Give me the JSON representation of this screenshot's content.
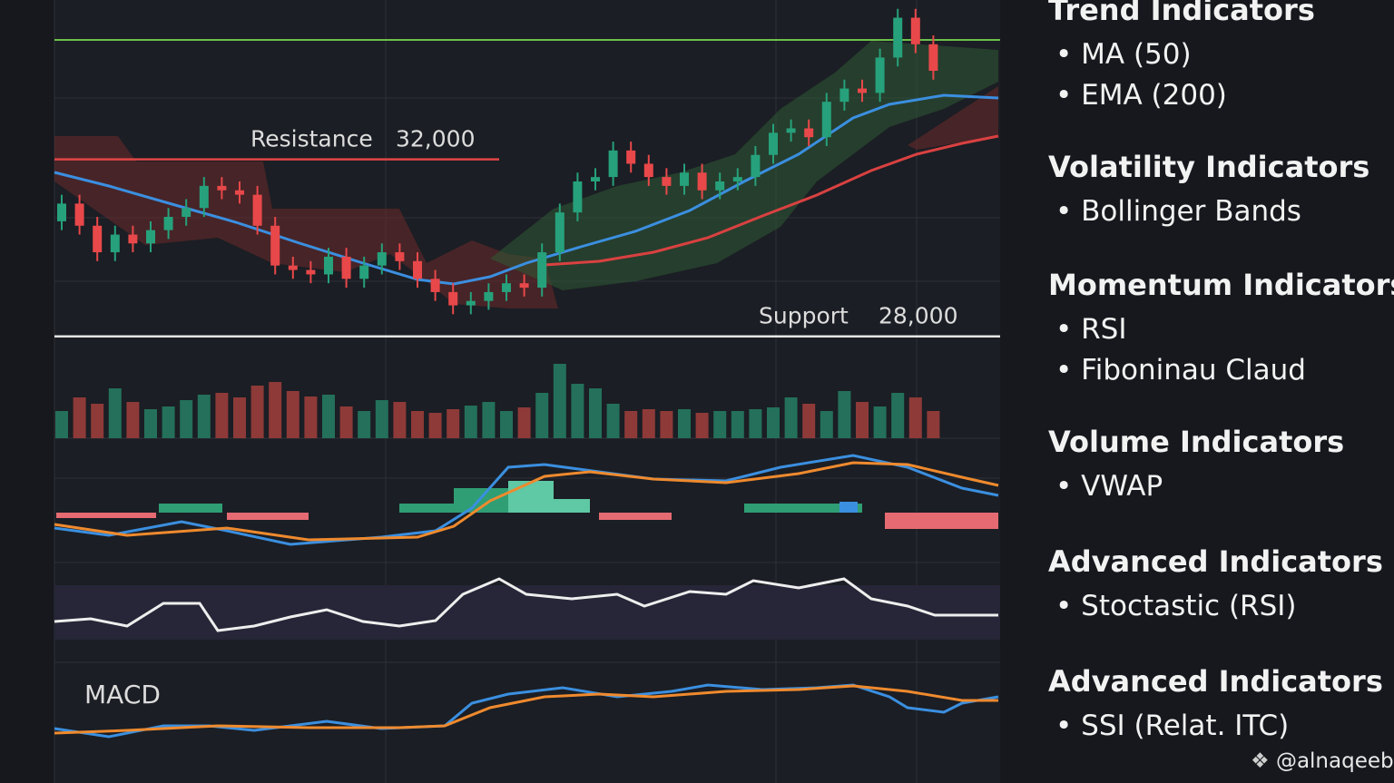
{
  "chart_data": {
    "type": "candlestick",
    "ylim": [
      27400,
      35600
    ],
    "colors": {
      "up": "#26a17b",
      "down": "#e8484a"
    },
    "open": [
      30600,
      31000,
      30500,
      29900,
      30300,
      30100,
      30400,
      30700,
      30900,
      31400,
      31300,
      31200,
      30500,
      29600,
      29500,
      29400,
      29800,
      29300,
      29600,
      29900,
      29700,
      29300,
      29000,
      28700,
      28800,
      29000,
      29200,
      29100,
      29900,
      30800,
      31500,
      31600,
      32200,
      31900,
      31600,
      31400,
      31700,
      31300,
      31500,
      31600,
      32100,
      32600,
      32700,
      32500,
      33300,
      33600,
      33500,
      34300,
      35200,
      34600
    ],
    "high": [
      31200,
      31200,
      30700,
      30500,
      30500,
      30600,
      30900,
      31100,
      31600,
      31600,
      31500,
      31400,
      30700,
      29800,
      29700,
      30000,
      30000,
      29800,
      30100,
      30100,
      29900,
      29500,
      29200,
      29000,
      29200,
      29400,
      29400,
      30100,
      31000,
      31700,
      31800,
      32400,
      32400,
      32100,
      31800,
      31900,
      31900,
      31700,
      31800,
      32300,
      32800,
      32900,
      32900,
      33500,
      33800,
      33800,
      34500,
      35400,
      35400,
      34800
    ],
    "low": [
      30400,
      30300,
      29700,
      29700,
      29900,
      29900,
      30200,
      30500,
      30700,
      31100,
      31000,
      30300,
      29400,
      29300,
      29200,
      29200,
      29100,
      29100,
      29400,
      29500,
      29100,
      28800,
      28500,
      28500,
      28600,
      28800,
      28900,
      28900,
      29700,
      30600,
      31300,
      31400,
      31700,
      31400,
      31200,
      31200,
      31100,
      31100,
      31300,
      31400,
      31900,
      32400,
      32300,
      32300,
      33100,
      33300,
      33300,
      34100,
      34400,
      33800
    ],
    "close": [
      31000,
      30500,
      29900,
      30300,
      30100,
      30400,
      30700,
      30900,
      31400,
      31300,
      31200,
      30500,
      29600,
      29500,
      29400,
      29800,
      29300,
      29600,
      29900,
      29700,
      29300,
      29000,
      28700,
      28800,
      29000,
      29200,
      29100,
      29900,
      30800,
      31500,
      31600,
      32200,
      31900,
      31600,
      31400,
      31700,
      31300,
      31500,
      31600,
      32100,
      32600,
      32700,
      32500,
      33300,
      33600,
      33500,
      34300,
      35200,
      34600,
      34000
    ],
    "volume": [
      30,
      45,
      38,
      55,
      40,
      32,
      35,
      42,
      48,
      50,
      45,
      58,
      62,
      52,
      46,
      48,
      35,
      30,
      42,
      40,
      30,
      28,
      32,
      36,
      40,
      30,
      34,
      50,
      82,
      60,
      55,
      38,
      30,
      32,
      30,
      32,
      28,
      30,
      30,
      32,
      34,
      45,
      38,
      30,
      52,
      40,
      35,
      50,
      45,
      30
    ],
    "annotations": [
      {
        "text": "Resistance",
        "value": 32000,
        "label": "32,000"
      },
      {
        "text": "Support",
        "value": 28000,
        "label": "28,000"
      }
    ],
    "panel_title": "MACD"
  },
  "sidebar": {
    "sections": [
      {
        "title": "Trend Indicators",
        "items": [
          "MA (50)",
          "EMA (200)"
        ]
      },
      {
        "title": "Volatility Indicators",
        "items": [
          "Bollinger Bands"
        ]
      },
      {
        "title": "Momentum Indicators",
        "items": [
          "RSI",
          "Fiboninau Claud"
        ]
      },
      {
        "title": "Volume Indicators",
        "items": [
          "VWAP"
        ]
      },
      {
        "title": "Advanced Indicators",
        "items": [
          "Stoctastic (RSI)"
        ]
      },
      {
        "title": "Advanced Indicators",
        "items": [
          "SSI (Relat. ITC)"
        ]
      }
    ]
  },
  "watermark": "@alnaqeeb"
}
